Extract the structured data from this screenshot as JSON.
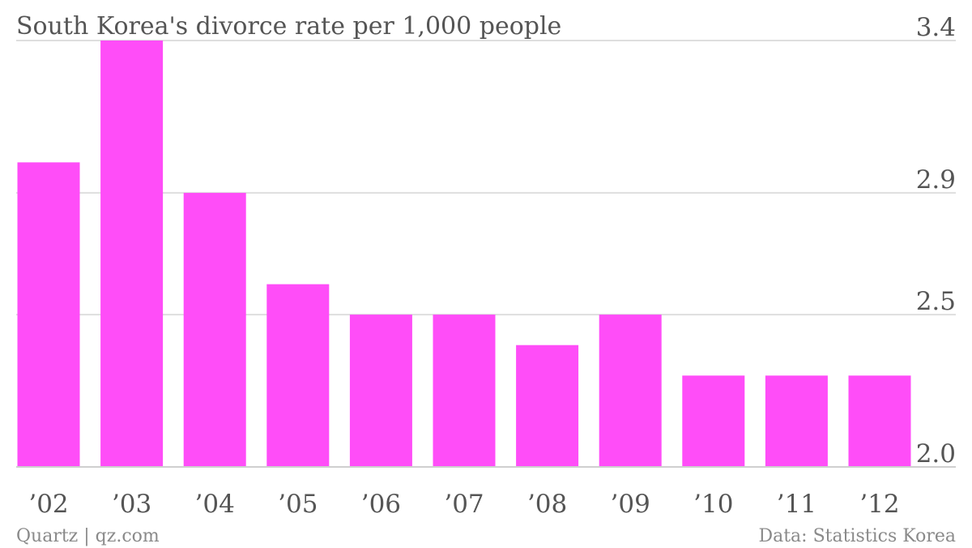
{
  "chart_data": {
    "type": "bar",
    "title": "South Korea's divorce rate per 1,000 people",
    "categories": [
      "’02",
      "’03",
      "’04",
      "’05",
      "’06",
      "’07",
      "’08",
      "’09",
      "’10",
      "’11",
      "’12"
    ],
    "values": [
      3.0,
      3.4,
      2.9,
      2.6,
      2.5,
      2.5,
      2.4,
      2.5,
      2.3,
      2.3,
      2.3
    ],
    "ylim": [
      2.0,
      3.4
    ],
    "yticks": [
      2.0,
      2.5,
      2.9,
      3.4
    ],
    "ytick_labels": [
      "2.0",
      "2.5",
      "2.9",
      "3.4"
    ],
    "grid": true,
    "bar_color": "#ff4df8"
  },
  "footer": {
    "source_left": "Quartz | qz.com",
    "source_right": "Data: Statistics Korea"
  }
}
